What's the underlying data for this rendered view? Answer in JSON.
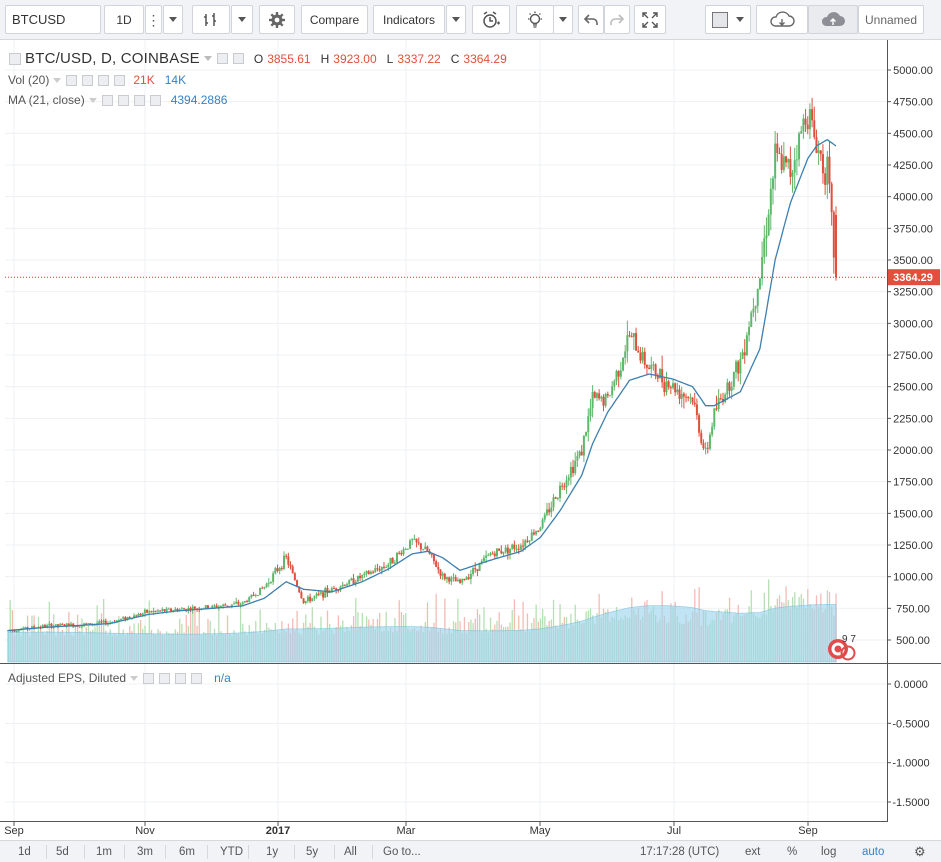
{
  "toolbar": {
    "symbol": "BTCUSD",
    "interval": "1D",
    "compare_label": "Compare",
    "indicators_label": "Indicators",
    "layout_name": "Unnamed"
  },
  "legend": {
    "title": "BTC/USD, D, COINBASE",
    "o_label": "O",
    "o_value": "3855.61",
    "h_label": "H",
    "h_value": "3923.00",
    "l_label": "L",
    "l_value": "3337.22",
    "c_label": "C",
    "c_value": "3364.29",
    "vol_label": "Vol (20)",
    "vol_value1": "21K",
    "vol_value2": "14K",
    "ma_label": "MA (21, close)",
    "ma_value": "4394.2886",
    "eps_label": "Adjusted EPS, Diluted",
    "eps_value": "n/a",
    "events_badge": "9 7"
  },
  "colors": {
    "up": "#5db86a",
    "down": "#e0503c",
    "ma": "#3d7fae",
    "volume_ma_fill": "#9fd6ee",
    "last_price_line": "#c0392b",
    "grid": "#eef0f3"
  },
  "chart_data": {
    "type": "candlestick",
    "symbol": "BTC/USD",
    "interval": "D",
    "exchange": "COINBASE",
    "price_axis": {
      "ticks": [
        500,
        750,
        1000,
        1250,
        1500,
        1750,
        2000,
        2250,
        2500,
        2750,
        3000,
        3250,
        3500,
        3750,
        4000,
        4250,
        4500,
        4750,
        5000
      ],
      "tick_labels": [
        "500.00",
        "750.00",
        "1000.00",
        "1250.00",
        "1500.00",
        "1750.00",
        "2000.00",
        "2250.00",
        "2500.00",
        "2750.00",
        "3000.00",
        "3250.00",
        "3500.00",
        "3750.00",
        "4000.00",
        "4250.00",
        "4500.00",
        "4750.00",
        "5000.00"
      ],
      "last_price": 3364.29,
      "last_price_label": "3364.29"
    },
    "time_axis": {
      "labels": [
        "Sep",
        "Nov",
        "2017",
        "Mar",
        "May",
        "Jul",
        "Sep"
      ]
    },
    "eps_axis": {
      "ticks": [
        0,
        -0.5,
        -1.0,
        -1.5
      ],
      "tick_labels": [
        "0.0000",
        "-0.5000",
        "-1.0000",
        "-1.5000"
      ]
    },
    "price_series_approx": {
      "x": [
        "2016-08-29",
        "2016-09-15",
        "2016-10-01",
        "2016-10-15",
        "2016-11-01",
        "2016-11-15",
        "2016-12-01",
        "2016-12-15",
        "2016-12-25",
        "2017-01-04",
        "2017-01-12",
        "2017-01-25",
        "2017-02-08",
        "2017-02-20",
        "2017-03-03",
        "2017-03-10",
        "2017-03-17",
        "2017-03-25",
        "2017-04-08",
        "2017-04-22",
        "2017-05-01",
        "2017-05-10",
        "2017-05-20",
        "2017-05-25",
        "2017-06-01",
        "2017-06-11",
        "2017-06-20",
        "2017-07-01",
        "2017-07-10",
        "2017-07-16",
        "2017-07-20",
        "2017-08-01",
        "2017-08-10",
        "2017-08-17",
        "2017-08-24",
        "2017-09-01",
        "2017-09-05",
        "2017-09-10",
        "2017-09-14"
      ],
      "close": [
        575,
        610,
        620,
        640,
        720,
        740,
        760,
        790,
        920,
        1150,
        800,
        900,
        1000,
        1100,
        1280,
        1200,
        1000,
        950,
        1180,
        1250,
        1400,
        1700,
        2000,
        2400,
        2400,
        2900,
        2650,
        2500,
        2400,
        1950,
        2300,
        2700,
        3400,
        4300,
        4200,
        4700,
        4400,
        4200,
        3364
      ],
      "ma21_approx": [
        575,
        600,
        615,
        630,
        700,
        730,
        750,
        770,
        830,
        960,
        900,
        880,
        960,
        1060,
        1180,
        1200,
        1150,
        1050,
        1130,
        1200,
        1310,
        1520,
        1800,
        2050,
        2300,
        2550,
        2600,
        2560,
        2500,
        2350,
        2350,
        2460,
        2800,
        3500,
        3950,
        4300,
        4400,
        4450,
        4400
      ]
    },
    "volume": {
      "label": "Vol (20)",
      "last_values": [
        "21K",
        "14K"
      ]
    },
    "indicators": [
      {
        "name": "MA (21, close)",
        "value": 4394.2886
      },
      {
        "name": "Adjusted EPS, Diluted",
        "value": "n/a"
      }
    ]
  },
  "bottombar": {
    "ranges": [
      "1d",
      "5d",
      "1m",
      "3m",
      "6m",
      "YTD",
      "1y",
      "5y",
      "All"
    ],
    "goto": "Go to...",
    "clock": "17:17:28 (UTC)",
    "ext": "ext",
    "pct": "%",
    "log": "log",
    "auto": "auto"
  }
}
